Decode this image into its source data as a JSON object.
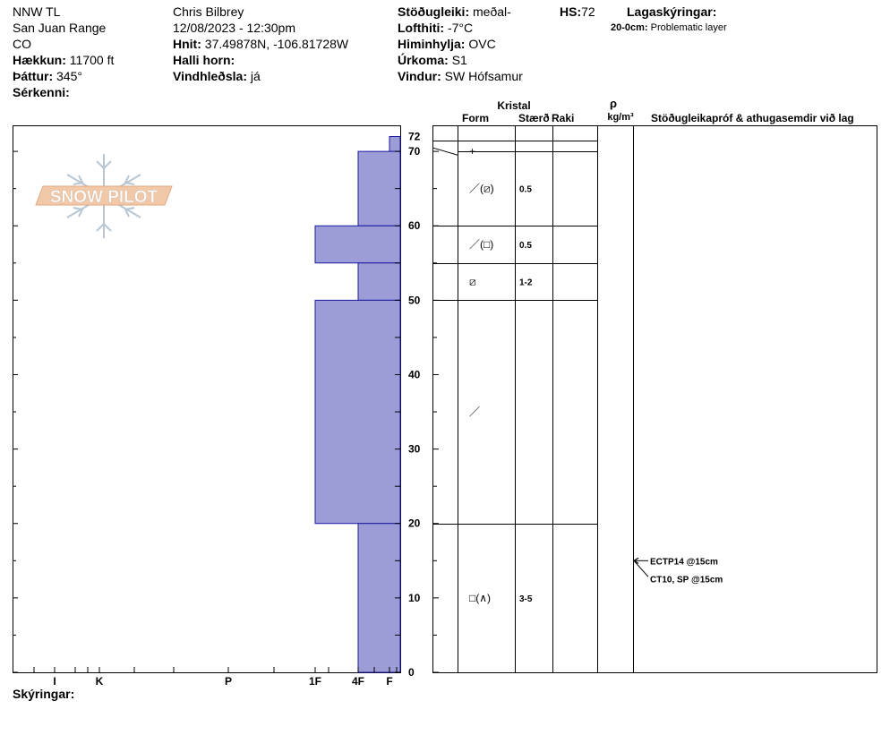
{
  "header": {
    "site": "NNW TL",
    "range": "San Juan Range",
    "state": "CO",
    "elevation_label": "Hækkun:",
    "elevation_value": "11700 ft",
    "aspect_label": "Þáttur:",
    "aspect_value": "345°",
    "features_label": "Sérkenni:",
    "observer": "Chris Bilbrey",
    "datetime": "12/08/2023 - 12:30pm",
    "coords_label": "Hnit:",
    "coords_value": "37.49878N, -106.81728W",
    "slope_label": "Halli horn:",
    "wind_loading_label": "Vindhleðsla:",
    "wind_loading_value": "já",
    "stability_label": "Stöðugleiki:",
    "stability_value": "meðal-",
    "air_temp_label": "Lofthiti:",
    "air_temp_value": "-7°C",
    "sky_label": "Himinhylja:",
    "sky_value": "OVC",
    "precip_label": "Úrkoma:",
    "precip_value": "S1",
    "wind_label": "Vindur:",
    "wind_value": "SW Hófsamur",
    "hs_label": "HS:",
    "hs_value": "72",
    "layer_notes_label": "Lagaskýringar:",
    "layer_note_range": "20-0cm:",
    "layer_note_text": "Problematic layer"
  },
  "logo": {
    "text": "SNOW PILOT"
  },
  "columns": {
    "crystal": "Kristal",
    "form": "Form",
    "size": "Stærð",
    "moisture": "Raki",
    "rho": "ρ",
    "density_unit": "kg/m³",
    "tests": "Stöðugleikapróf & athugasemdir við lag"
  },
  "footer": {
    "notes_label": "Skýringar:"
  },
  "colors": {
    "hardness_fill": "#9c9cd6",
    "hardness_stroke": "#1a1aa0"
  },
  "chart_data": {
    "type": "bar",
    "y_axis": {
      "min": 0,
      "max": 72,
      "ticks": [
        0,
        10,
        20,
        30,
        40,
        50,
        60,
        70,
        72
      ]
    },
    "x_axis": {
      "labels": [
        "I",
        "K",
        "P",
        "1F",
        "4F",
        "F"
      ]
    },
    "hardness_layers": [
      {
        "top": 72,
        "bottom": 70,
        "hardness_top": "F",
        "hardness_bottom": "F"
      },
      {
        "top": 70,
        "bottom": 60,
        "hardness_top": "4F",
        "hardness_bottom": "4F"
      },
      {
        "top": 60,
        "bottom": 55,
        "hardness_top": "1F",
        "hardness_bottom": "1F"
      },
      {
        "top": 55,
        "bottom": 50,
        "hardness_top": "4F",
        "hardness_bottom": "4F"
      },
      {
        "top": 50,
        "bottom": 20,
        "hardness_top": "1F",
        "hardness_bottom": "1F"
      },
      {
        "top": 20,
        "bottom": 0,
        "hardness_top": "4F",
        "hardness_bottom": "4F"
      }
    ],
    "layer_boundaries": [
      72,
      70,
      60,
      55,
      50,
      20,
      0
    ],
    "crystal_rows": [
      {
        "depth": 70,
        "form": "+",
        "size": ""
      },
      {
        "depth": 65,
        "form": "／(⧄)",
        "size": "0.5"
      },
      {
        "depth": 57.5,
        "form": "／(□)",
        "size": "0.5"
      },
      {
        "depth": 52.5,
        "form": "⧄",
        "size": "1-2"
      },
      {
        "depth": 35,
        "form": "／",
        "size": ""
      },
      {
        "depth": 10,
        "form": "□(∧)",
        "size": "3-5"
      }
    ],
    "tests": [
      {
        "depth": 15,
        "text": "ECTP14 @15cm"
      },
      {
        "depth": 15,
        "text": "CT10, SP @15cm"
      }
    ]
  }
}
